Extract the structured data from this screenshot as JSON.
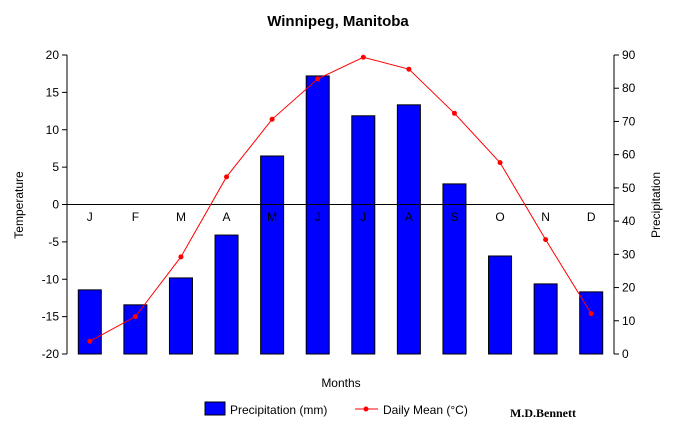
{
  "chart_data": {
    "type": "bar+line",
    "title": "Winnipeg, Manitoba",
    "xlabel": "Months",
    "ylabel_left": "Temperature",
    "ylabel_right": "Precipitation",
    "categories": [
      "J",
      "F",
      "M",
      "A",
      "M",
      "J",
      "J",
      "A",
      "S",
      "O",
      "N",
      "D"
    ],
    "ylim_left": [
      -20,
      20
    ],
    "yticks_left": [
      20,
      15,
      10,
      5,
      0,
      -5,
      -10,
      -15,
      -20
    ],
    "ylim_right": [
      0,
      90
    ],
    "yticks_right": [
      90,
      80,
      70,
      60,
      50,
      40,
      30,
      20,
      10,
      0
    ],
    "series": [
      {
        "name": "Precipitation (mm)",
        "type": "bar",
        "axis": "right",
        "color": "#0000FF",
        "values": [
          19.3,
          14.8,
          22.9,
          35.8,
          59.6,
          83.7,
          71.7,
          75.0,
          51.2,
          29.5,
          21.1,
          18.7
        ]
      },
      {
        "name": "Daily Mean (°C)",
        "type": "line",
        "axis": "left",
        "color": "#FF0000",
        "values": [
          -18.3,
          -15.0,
          -7.0,
          3.7,
          11.4,
          16.8,
          19.7,
          18.1,
          12.2,
          5.6,
          -4.7,
          -14.6
        ]
      }
    ],
    "legend": "bottom",
    "annotation": "M.D.Bennett"
  }
}
